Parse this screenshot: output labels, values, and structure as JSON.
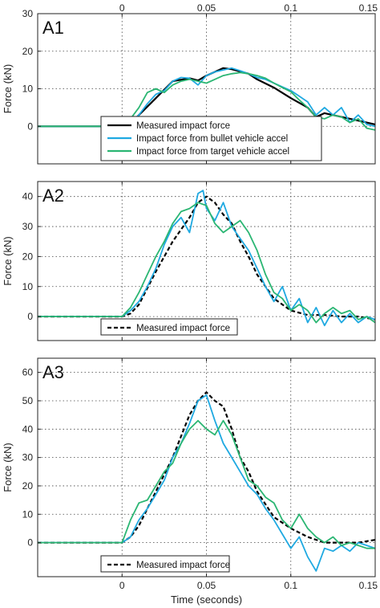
{
  "chart_data": [
    {
      "type": "line",
      "label": "A1",
      "ylabel": "Force (kN)",
      "xlabel": "",
      "top_tick_labels": true,
      "xlim": [
        -0.05,
        0.15
      ],
      "ylim": [
        -10,
        30
      ],
      "xticks": [
        0,
        0.05,
        0.1,
        0.15
      ],
      "xtick_labels": [
        "0",
        "0.05",
        "0.1",
        "0.15"
      ],
      "yticks": [
        0,
        10,
        20,
        30
      ],
      "ytick_labels": [
        "0",
        "10",
        "20",
        "30"
      ],
      "grid": true,
      "legend_position": "bottom",
      "series": [
        {
          "name": "Measured impact force",
          "color": "#000000",
          "style": "solid",
          "x": [
            -0.05,
            0,
            0.005,
            0.01,
            0.02,
            0.03,
            0.04,
            0.045,
            0.05,
            0.055,
            0.06,
            0.065,
            0.07,
            0.075,
            0.08,
            0.09,
            0.1,
            0.11,
            0.115,
            0.12,
            0.13,
            0.14,
            0.15
          ],
          "y": [
            0,
            0,
            0.8,
            3,
            7.5,
            12,
            12.8,
            12.2,
            13.5,
            14.5,
            15.5,
            15.2,
            14.6,
            14,
            12.5,
            10.3,
            7.5,
            5,
            2.5,
            3.5,
            2.5,
            1.5,
            0.5
          ]
        },
        {
          "name": "Impact force from bullet vehicle accel",
          "color": "#1fa9e1",
          "style": "solid",
          "x": [
            -0.05,
            0,
            0.005,
            0.01,
            0.015,
            0.02,
            0.025,
            0.03,
            0.035,
            0.04,
            0.045,
            0.05,
            0.055,
            0.06,
            0.065,
            0.07,
            0.075,
            0.08,
            0.085,
            0.09,
            0.095,
            0.1,
            0.105,
            0.11,
            0.115,
            0.12,
            0.125,
            0.13,
            0.135,
            0.14,
            0.145,
            0.15
          ],
          "y": [
            0,
            0,
            1,
            3,
            6,
            8.5,
            9.5,
            12,
            13,
            12.8,
            11,
            13.5,
            14.5,
            15,
            15.5,
            14.8,
            14,
            13,
            12.5,
            11.5,
            10.5,
            9.5,
            8,
            6.5,
            3,
            5,
            3,
            5,
            1,
            3,
            0.5,
            0
          ]
        },
        {
          "name": "Impact force from target vehicle accel",
          "color": "#2bb673",
          "style": "solid",
          "x": [
            -0.05,
            0,
            0.005,
            0.01,
            0.015,
            0.02,
            0.025,
            0.03,
            0.035,
            0.04,
            0.045,
            0.05,
            0.055,
            0.06,
            0.065,
            0.07,
            0.075,
            0.08,
            0.085,
            0.09,
            0.095,
            0.1,
            0.105,
            0.11,
            0.115,
            0.12,
            0.125,
            0.13,
            0.135,
            0.14,
            0.145,
            0.15
          ],
          "y": [
            0,
            0,
            2,
            5,
            9,
            10,
            9,
            11,
            12,
            12.5,
            12,
            11.5,
            12.5,
            13.5,
            14,
            14.3,
            14,
            13.5,
            12.8,
            11.5,
            10.3,
            9.2,
            7,
            5,
            2.5,
            2,
            3,
            2.5,
            1,
            2,
            -0.5,
            -1
          ]
        }
      ]
    },
    {
      "type": "line",
      "label": "A2",
      "ylabel": "Force (kN)",
      "xlabel": "",
      "top_tick_labels": false,
      "xlim": [
        -0.05,
        0.15
      ],
      "ylim": [
        -8,
        45
      ],
      "xticks": [
        0,
        0.05,
        0.1,
        0.15
      ],
      "xtick_labels": [],
      "yticks": [
        0,
        10,
        20,
        30,
        40
      ],
      "ytick_labels": [
        "0",
        "10",
        "20",
        "30",
        "40"
      ],
      "grid": true,
      "legend_position": "bottom",
      "series": [
        {
          "name": "Measured impact force",
          "color": "#000000",
          "style": "dashed",
          "x": [
            -0.05,
            0,
            0.005,
            0.01,
            0.02,
            0.03,
            0.04,
            0.045,
            0.05,
            0.055,
            0.06,
            0.065,
            0.07,
            0.075,
            0.08,
            0.09,
            0.1,
            0.11,
            0.12,
            0.13,
            0.14,
            0.15
          ],
          "y": [
            0,
            0,
            1,
            4,
            15,
            25,
            33,
            38,
            40,
            38,
            34,
            31,
            25,
            20,
            14,
            6,
            2,
            0.5,
            0.5,
            0,
            0,
            -1
          ]
        },
        {
          "color": "#1fa9e1",
          "style": "solid",
          "x": [
            -0.05,
            0,
            0.005,
            0.01,
            0.015,
            0.02,
            0.025,
            0.03,
            0.035,
            0.04,
            0.045,
            0.048,
            0.05,
            0.055,
            0.06,
            0.065,
            0.07,
            0.075,
            0.08,
            0.085,
            0.09,
            0.095,
            0.1,
            0.105,
            0.11,
            0.115,
            0.12,
            0.125,
            0.13,
            0.135,
            0.14,
            0.145,
            0.15
          ],
          "y": [
            0,
            0,
            2,
            5,
            10,
            16,
            24,
            30,
            33,
            28,
            41,
            42,
            36,
            32,
            38,
            30,
            26,
            22,
            16,
            10,
            5,
            10,
            2,
            6,
            -2,
            3,
            -3,
            2,
            -2,
            1,
            -2,
            0,
            -1
          ]
        },
        {
          "color": "#2bb673",
          "style": "solid",
          "x": [
            -0.05,
            0,
            0.005,
            0.01,
            0.015,
            0.02,
            0.025,
            0.03,
            0.035,
            0.04,
            0.045,
            0.05,
            0.055,
            0.06,
            0.065,
            0.07,
            0.075,
            0.08,
            0.085,
            0.09,
            0.095,
            0.1,
            0.105,
            0.11,
            0.115,
            0.12,
            0.125,
            0.13,
            0.135,
            0.14,
            0.145,
            0.15
          ],
          "y": [
            0,
            0,
            3,
            8,
            14,
            20,
            25,
            31,
            35,
            36,
            38,
            37,
            31,
            28,
            30,
            32,
            28,
            22,
            14,
            8,
            6,
            2,
            4,
            2,
            -2,
            1,
            3,
            1,
            2,
            -1,
            0,
            -2
          ]
        }
      ]
    },
    {
      "type": "line",
      "label": "A3",
      "ylabel": "Force (kN)",
      "xlabel": "Time (seconds)",
      "top_tick_labels": false,
      "xlim": [
        -0.05,
        0.15
      ],
      "ylim": [
        -12,
        65
      ],
      "xticks": [
        0,
        0.05,
        0.1,
        0.15
      ],
      "xtick_labels": [
        "0",
        "0.05",
        "0.1",
        "0.15"
      ],
      "yticks": [
        0,
        10,
        20,
        30,
        40,
        50,
        60
      ],
      "ytick_labels": [
        "0",
        "10",
        "20",
        "30",
        "40",
        "50",
        "60"
      ],
      "grid": true,
      "legend_position": "bottom",
      "series": [
        {
          "name": "Measured impact force",
          "color": "#000000",
          "style": "dashed",
          "x": [
            -0.05,
            0,
            0.005,
            0.01,
            0.02,
            0.03,
            0.04,
            0.045,
            0.05,
            0.055,
            0.06,
            0.065,
            0.07,
            0.075,
            0.08,
            0.09,
            0.1,
            0.11,
            0.12,
            0.13,
            0.14,
            0.15
          ],
          "y": [
            0,
            0,
            2,
            6,
            18,
            30,
            45,
            50,
            53,
            50,
            48,
            40,
            30,
            25,
            18,
            9,
            5,
            2,
            0,
            0,
            0,
            1
          ]
        },
        {
          "color": "#1fa9e1",
          "style": "solid",
          "x": [
            -0.05,
            0,
            0.005,
            0.01,
            0.015,
            0.02,
            0.025,
            0.03,
            0.035,
            0.04,
            0.045,
            0.05,
            0.055,
            0.06,
            0.065,
            0.07,
            0.075,
            0.08,
            0.085,
            0.09,
            0.095,
            0.1,
            0.105,
            0.11,
            0.115,
            0.12,
            0.125,
            0.13,
            0.135,
            0.14,
            0.145,
            0.15
          ],
          "y": [
            0,
            0,
            2,
            8,
            12,
            17,
            22,
            30,
            35,
            42,
            50,
            52,
            43,
            35,
            30,
            25,
            20,
            17,
            12,
            8,
            3,
            -2,
            2,
            -5,
            -10,
            -2,
            -3,
            -1,
            -3,
            0,
            -1,
            -2
          ]
        },
        {
          "color": "#2bb673",
          "style": "solid",
          "x": [
            -0.05,
            0,
            0.005,
            0.01,
            0.015,
            0.02,
            0.025,
            0.03,
            0.035,
            0.04,
            0.045,
            0.05,
            0.055,
            0.06,
            0.065,
            0.07,
            0.075,
            0.08,
            0.085,
            0.09,
            0.095,
            0.1,
            0.105,
            0.11,
            0.115,
            0.12,
            0.125,
            0.13,
            0.135,
            0.14,
            0.145,
            0.15
          ],
          "y": [
            0,
            0,
            8,
            14,
            15,
            20,
            25,
            28,
            35,
            40,
            43,
            40,
            38,
            43,
            38,
            30,
            22,
            20,
            16,
            14,
            8,
            5,
            10,
            5,
            2,
            0,
            2,
            -1,
            0,
            -1,
            -2,
            -2
          ]
        }
      ]
    }
  ]
}
